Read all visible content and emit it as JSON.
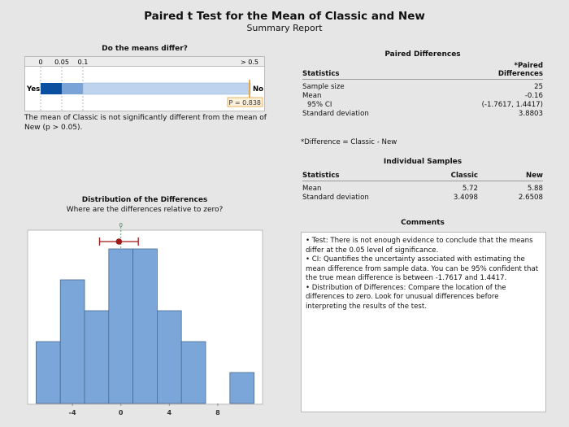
{
  "title": "Paired t Test for the Mean of Classic and New",
  "subtitle": "Summary Report",
  "means_differ": {
    "heading": "Do the means differ?",
    "scale_labels": [
      "0",
      "0.05",
      "0.1",
      "> 0.5"
    ],
    "yes_label": "Yes",
    "no_label": "No",
    "p_label": "P = 0.838",
    "p_value": 0.838,
    "colors": {
      "dark": "#0b4fa0",
      "mid": "#7aa3d8",
      "light": "#bdd3ee",
      "marker": "#e8a33a"
    },
    "conclusion": "The mean of Classic is not significantly different from the mean of New (p > 0.05)."
  },
  "paired": {
    "heading": "Paired Differences",
    "col_stat": "Statistics",
    "col_val_1": "*Paired",
    "col_val_2": "Differences",
    "rows": [
      [
        "Sample size",
        "25"
      ],
      [
        "Mean",
        "-0.16"
      ],
      [
        "95% CI",
        "(-1.7617, 1.4417)"
      ],
      [
        "Standard deviation",
        "3.8803"
      ]
    ],
    "footnote": "*Difference = Classic - New"
  },
  "individual": {
    "heading": "Individual Samples",
    "cols": [
      "Statistics",
      "Classic",
      "New"
    ],
    "rows": [
      [
        "Mean",
        "5.72",
        "5.88"
      ],
      [
        "Standard deviation",
        "3.4098",
        "2.6508"
      ]
    ]
  },
  "comments": {
    "heading": "Comments",
    "items": [
      "• Test: There is not enough evidence to conclude that the means differ at the 0.05 level of significance.",
      "• CI: Quantifies the uncertainty associated with estimating the mean difference from sample data. You can be 95% confident that the true mean difference is between -1.7617 and 1.4417.",
      "• Distribution of Differences: Compare the location of the differences to zero. Look for unusual differences before interpreting the results of the test."
    ]
  },
  "chart_data": {
    "type": "bar",
    "title": "Distribution of the Differences",
    "subtitle": "Where are the differences relative to zero?",
    "bin_centers": [
      -6,
      -4,
      -2,
      0,
      2,
      4,
      6,
      8,
      10
    ],
    "bin_width": 2,
    "counts": [
      2,
      4,
      3,
      5,
      5,
      3,
      2,
      0,
      1
    ],
    "xticks": [
      -4,
      0,
      4,
      8
    ],
    "xlim": [
      -7.7,
      11.7
    ],
    "reference_line": {
      "value": 0,
      "label": "0"
    },
    "mean": -0.16,
    "ci": [
      -1.7617,
      1.4417
    ],
    "bar_color": "#7ba6d9",
    "ci_color": "#a01818"
  }
}
